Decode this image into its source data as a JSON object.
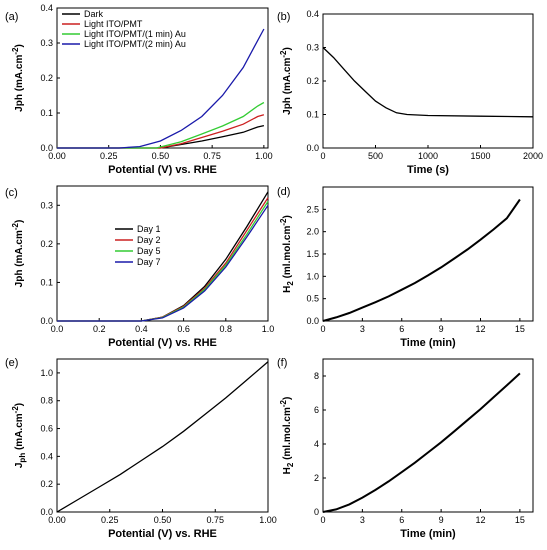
{
  "chart_data": [
    {
      "id": "a",
      "panel_label": "(a)",
      "type": "line",
      "xlabel": "Potential (V) vs. RHE",
      "ylabel": "Jph (mA.cm",
      "ylabel_sup": "-2",
      "ylabel_tail": ")",
      "xlim": [
        0.0,
        1.02
      ],
      "ylim": [
        0.0,
        0.4
      ],
      "xticks": [
        0.0,
        0.25,
        0.5,
        0.75,
        1.0
      ],
      "xtick_labels": [
        "0.00",
        "0.25",
        "0.50",
        "0.75",
        "1.00"
      ],
      "yticks": [
        0.0,
        0.1,
        0.2,
        0.3,
        0.4
      ],
      "ytick_labels": [
        "0.0",
        "0.1",
        "0.2",
        "0.3",
        "0.4"
      ],
      "legend_position": "top-left",
      "series": [
        {
          "name": "Dark",
          "color": "#000000",
          "x": [
            0.0,
            0.5,
            0.6,
            0.7,
            0.8,
            0.9,
            0.97,
            1.0
          ],
          "y": [
            0.0,
            0.0,
            0.01,
            0.02,
            0.032,
            0.045,
            0.06,
            0.064
          ]
        },
        {
          "name": "Light ITO/PMT",
          "color": "#cc2020",
          "x": [
            0.0,
            0.5,
            0.6,
            0.7,
            0.8,
            0.9,
            0.97,
            1.0
          ],
          "y": [
            0.0,
            0.0,
            0.012,
            0.03,
            0.048,
            0.068,
            0.09,
            0.095
          ]
        },
        {
          "name": "Light ITO/PMT/(1 min) Au",
          "color": "#33cc33",
          "x": [
            0.0,
            0.48,
            0.6,
            0.7,
            0.8,
            0.9,
            0.97,
            1.0
          ],
          "y": [
            0.0,
            0.0,
            0.018,
            0.04,
            0.063,
            0.09,
            0.12,
            0.13
          ]
        },
        {
          "name": "Light ITO/PMT/(2 min) Au",
          "color": "#1a1aaa",
          "x": [
            0.0,
            0.3,
            0.4,
            0.5,
            0.6,
            0.7,
            0.8,
            0.9,
            1.0
          ],
          "y": [
            0.0,
            0.0,
            0.004,
            0.02,
            0.05,
            0.09,
            0.15,
            0.23,
            0.34
          ]
        }
      ]
    },
    {
      "id": "b",
      "panel_label": "(b)",
      "type": "line",
      "xlabel": "Time (s)",
      "ylabel": "Jph (mA.cm",
      "ylabel_sup": "-2",
      "ylabel_tail": ")",
      "xlim": [
        0,
        2000
      ],
      "ylim": [
        0.0,
        0.4
      ],
      "xticks": [
        0,
        500,
        1000,
        1500,
        2000
      ],
      "xtick_labels": [
        "0",
        "500",
        "1000",
        "1500",
        "2000"
      ],
      "yticks": [
        0.0,
        0.1,
        0.2,
        0.3,
        0.4
      ],
      "ytick_labels": [
        "0.0",
        "0.1",
        "0.2",
        "0.3",
        "0.4"
      ],
      "series": [
        {
          "color": "#000000",
          "x": [
            0,
            100,
            200,
            300,
            400,
            500,
            600,
            700,
            800,
            1000,
            1500,
            2000
          ],
          "y": [
            0.3,
            0.27,
            0.235,
            0.2,
            0.17,
            0.14,
            0.12,
            0.105,
            0.1,
            0.097,
            0.095,
            0.093
          ]
        }
      ]
    },
    {
      "id": "c",
      "panel_label": "(c)",
      "type": "line",
      "xlabel": "Potential (V) vs. RHE",
      "ylabel": "Jph (mA.cm",
      "ylabel_sup": "-2",
      "ylabel_tail": ")",
      "xlim": [
        0.0,
        1.0
      ],
      "ylim": [
        0.0,
        0.35
      ],
      "xticks": [
        0.0,
        0.2,
        0.4,
        0.6,
        0.8,
        1.0
      ],
      "xtick_labels": [
        "0.0",
        "0.2",
        "0.4",
        "0.6",
        "0.8",
        "1.0"
      ],
      "yticks": [
        0.0,
        0.1,
        0.2,
        0.3
      ],
      "ytick_labels": [
        "0.0",
        "0.1",
        "0.2",
        "0.3"
      ],
      "legend_position": "center",
      "series": [
        {
          "name": "Day 1",
          "color": "#000000",
          "x": [
            0.0,
            0.4,
            0.5,
            0.6,
            0.7,
            0.8,
            0.9,
            1.0
          ],
          "y": [
            0.0,
            0.0,
            0.01,
            0.04,
            0.09,
            0.16,
            0.245,
            0.335
          ]
        },
        {
          "name": "Day 2",
          "color": "#cc2020",
          "x": [
            0.0,
            0.4,
            0.5,
            0.6,
            0.7,
            0.8,
            0.9,
            1.0
          ],
          "y": [
            0.0,
            0.0,
            0.01,
            0.038,
            0.085,
            0.15,
            0.235,
            0.32
          ]
        },
        {
          "name": "Day 5",
          "color": "#33cc33",
          "x": [
            0.0,
            0.4,
            0.5,
            0.6,
            0.7,
            0.8,
            0.9,
            1.0
          ],
          "y": [
            0.0,
            0.0,
            0.009,
            0.036,
            0.082,
            0.145,
            0.225,
            0.31
          ]
        },
        {
          "name": "Day 7",
          "color": "#1a1aaa",
          "x": [
            0.0,
            0.4,
            0.5,
            0.6,
            0.7,
            0.8,
            0.9,
            1.0
          ],
          "y": [
            0.0,
            0.0,
            0.008,
            0.034,
            0.078,
            0.14,
            0.218,
            0.3
          ]
        }
      ]
    },
    {
      "id": "d",
      "panel_label": "(d)",
      "type": "line",
      "xlabel": "Time (min)",
      "ylabel": "H",
      "ylabel_sub": "2",
      "ylabel_mid": " (ml.mol.cm",
      "ylabel_sup": "-2",
      "ylabel_tail": ")",
      "xlim": [
        0,
        16
      ],
      "ylim": [
        0.0,
        3.0
      ],
      "xticks": [
        0,
        3,
        6,
        9,
        12,
        15
      ],
      "xtick_labels": [
        "0",
        "3",
        "6",
        "9",
        "12",
        "15"
      ],
      "yticks": [
        0.0,
        0.5,
        1.0,
        1.5,
        2.0,
        2.5
      ],
      "ytick_labels": [
        "0.0",
        "0.5",
        "1.0",
        "1.5",
        "2.0",
        "2.5"
      ],
      "series": [
        {
          "color": "#000000",
          "x": [
            0,
            1,
            2,
            3,
            4,
            5,
            6,
            7,
            8,
            9,
            10,
            11,
            12,
            13,
            14,
            15
          ],
          "y": [
            0.0,
            0.08,
            0.18,
            0.3,
            0.42,
            0.55,
            0.7,
            0.85,
            1.02,
            1.2,
            1.4,
            1.6,
            1.82,
            2.05,
            2.3,
            2.72
          ]
        }
      ]
    },
    {
      "id": "e",
      "panel_label": "(e)",
      "type": "line",
      "xlabel": "Potential (V) vs. RHE",
      "ylabel": "J",
      "ylabel_sub": "ph",
      "ylabel_mid": " (mA.cm",
      "ylabel_sup": "-2",
      "ylabel_tail": ")",
      "xlim": [
        0.0,
        1.0
      ],
      "ylim": [
        0.0,
        1.1
      ],
      "xticks": [
        0.0,
        0.25,
        0.5,
        0.75,
        1.0
      ],
      "xtick_labels": [
        "0.00",
        "0.25",
        "0.50",
        "0.75",
        "1.00"
      ],
      "yticks": [
        0.0,
        0.2,
        0.4,
        0.6,
        0.8,
        1.0
      ],
      "ytick_labels": [
        "0.0",
        "0.2",
        "0.4",
        "0.6",
        "0.8",
        "1.0"
      ],
      "series": [
        {
          "color": "#000000",
          "x": [
            0.0,
            0.1,
            0.2,
            0.3,
            0.4,
            0.5,
            0.6,
            0.7,
            0.8,
            0.9,
            1.0
          ],
          "y": [
            0.0,
            0.09,
            0.18,
            0.27,
            0.37,
            0.47,
            0.58,
            0.7,
            0.82,
            0.95,
            1.08
          ]
        }
      ]
    },
    {
      "id": "f",
      "panel_label": "(f)",
      "type": "line",
      "xlabel": "Time (min)",
      "ylabel": "H",
      "ylabel_sub": "2",
      "ylabel_mid": " (ml.mol.cm",
      "ylabel_sup": "-2",
      "ylabel_tail": ")",
      "xlim": [
        0,
        16
      ],
      "ylim": [
        0,
        9
      ],
      "xticks": [
        0,
        3,
        6,
        9,
        12,
        15
      ],
      "xtick_labels": [
        "0",
        "3",
        "6",
        "9",
        "12",
        "15"
      ],
      "yticks": [
        0,
        2,
        4,
        6,
        8
      ],
      "ytick_labels": [
        "0",
        "2",
        "4",
        "6",
        "8"
      ],
      "series": [
        {
          "color": "#000000",
          "x": [
            0,
            1,
            2,
            3,
            4,
            5,
            6,
            7,
            8,
            9,
            10,
            11,
            12,
            13,
            14,
            15
          ],
          "y": [
            0.0,
            0.15,
            0.45,
            0.85,
            1.3,
            1.8,
            2.35,
            2.9,
            3.5,
            4.1,
            4.75,
            5.4,
            6.05,
            6.75,
            7.45,
            8.15
          ]
        }
      ]
    }
  ]
}
